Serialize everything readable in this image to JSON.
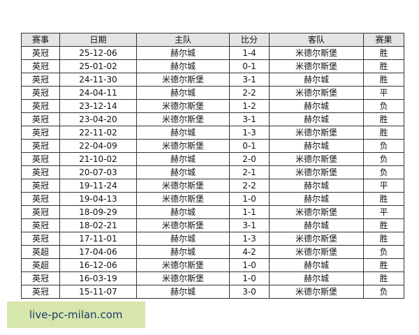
{
  "table": {
    "header": [
      "赛事",
      "日期",
      "主队",
      "比分",
      "客队",
      "赛果"
    ],
    "rows": [
      [
        "英冠",
        "25-12-06",
        "赫尔城",
        "1-4",
        "米德尔斯堡",
        "胜"
      ],
      [
        "英冠",
        "25-01-02",
        "赫尔城",
        "0-1",
        "米德尔斯堡",
        "胜"
      ],
      [
        "英冠",
        "24-11-30",
        "米德尔斯堡",
        "3-1",
        "赫尔城",
        "胜"
      ],
      [
        "英冠",
        "24-04-11",
        "赫尔城",
        "2-2",
        "米德尔斯堡",
        "平"
      ],
      [
        "英冠",
        "23-12-14",
        "米德尔斯堡",
        "1-2",
        "赫尔城",
        "负"
      ],
      [
        "英冠",
        "23-04-20",
        "米德尔斯堡",
        "3-1",
        "赫尔城",
        "胜"
      ],
      [
        "英冠",
        "22-11-02",
        "赫尔城",
        "1-3",
        "米德尔斯堡",
        "胜"
      ],
      [
        "英冠",
        "22-04-09",
        "米德尔斯堡",
        "0-1",
        "赫尔城",
        "负"
      ],
      [
        "英冠",
        "21-10-02",
        "赫尔城",
        "2-0",
        "米德尔斯堡",
        "负"
      ],
      [
        "英冠",
        "20-07-03",
        "赫尔城",
        "2-1",
        "米德尔斯堡",
        "负"
      ],
      [
        "英冠",
        "19-11-24",
        "米德尔斯堡",
        "2-2",
        "赫尔城",
        "平"
      ],
      [
        "英冠",
        "19-04-13",
        "米德尔斯堡",
        "1-0",
        "赫尔城",
        "胜"
      ],
      [
        "英冠",
        "18-09-29",
        "赫尔城",
        "1-1",
        "米德尔斯堡",
        "平"
      ],
      [
        "英冠",
        "18-02-21",
        "米德尔斯堡",
        "3-1",
        "赫尔城",
        "胜"
      ],
      [
        "英冠",
        "17-11-01",
        "赫尔城",
        "1-3",
        "米德尔斯堡",
        "胜"
      ],
      [
        "英超",
        "17-04-06",
        "赫尔城",
        "4-2",
        "米德尔斯堡",
        "负"
      ],
      [
        "英超",
        "16-12-06",
        "米德尔斯堡",
        "1-0",
        "赫尔城",
        "胜"
      ],
      [
        "英冠",
        "16-03-19",
        "米德尔斯堡",
        "1-0",
        "赫尔城",
        "胜"
      ],
      [
        "英冠",
        "15-11-07",
        "赫尔城",
        "3-0",
        "米德尔斯堡",
        "负"
      ]
    ]
  },
  "watermark": "live-pc-milan.com"
}
